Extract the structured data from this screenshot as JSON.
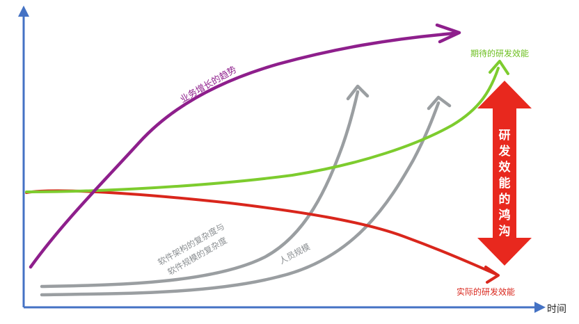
{
  "colors": {
    "axis": "#4472c4",
    "business": "#8e1f8c",
    "complexity": "#9a9ea1",
    "expected": "#7dcc2e",
    "actual": "#d9261c",
    "gap_arrow": "#e8281e"
  },
  "axis": {
    "x_label": "时间",
    "y_label": ""
  },
  "curves": {
    "business_trend": {
      "label": "业务增长的趋势"
    },
    "software_complexity": {
      "label_line1": "软件架构的复杂度与",
      "label_line2": "软件规模的复杂度"
    },
    "headcount": {
      "label": "人员规模"
    },
    "expected_efficiency": {
      "label": "期待的研发效能"
    },
    "actual_efficiency": {
      "label": "实际的研发效能"
    }
  },
  "gap": {
    "chars": [
      "研",
      "发",
      "效",
      "能",
      "的",
      "鸿",
      "沟"
    ]
  }
}
